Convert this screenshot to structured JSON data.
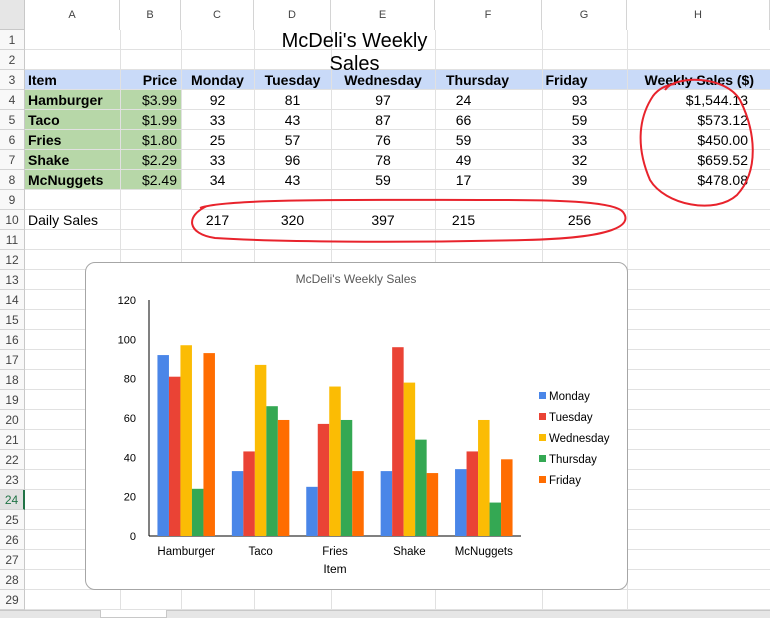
{
  "columns": [
    "A",
    "B",
    "C",
    "D",
    "E",
    "F",
    "G",
    "H"
  ],
  "rows": [
    "1",
    "2",
    "3",
    "4",
    "5",
    "6",
    "7",
    "8",
    "9",
    "10",
    "11",
    "12",
    "13",
    "14",
    "15",
    "16",
    "17",
    "18",
    "19",
    "20",
    "21",
    "22",
    "23",
    "24",
    "25",
    "26",
    "27",
    "28",
    "29"
  ],
  "selected_row": "24",
  "sheet_title": "McDeli's Weekly Sales",
  "headers": [
    "Item",
    "Price",
    "Monday",
    "Tuesday",
    "Wednesday",
    "Thursday",
    "Friday",
    "Weekly Sales ($)"
  ],
  "items": [
    {
      "name": "Hamburger",
      "price": "$3.99",
      "days": [
        "92",
        "81",
        "97",
        "24",
        "93"
      ],
      "weekly": "$1,544.13"
    },
    {
      "name": "Taco",
      "price": "$1.99",
      "days": [
        "33",
        "43",
        "87",
        "66",
        "59"
      ],
      "weekly": "$573.12"
    },
    {
      "name": "Fries",
      "price": "$1.80",
      "days": [
        "25",
        "57",
        "76",
        "59",
        "33"
      ],
      "weekly": "$450.00"
    },
    {
      "name": "Shake",
      "price": "$2.29",
      "days": [
        "33",
        "96",
        "78",
        "49",
        "32"
      ],
      "weekly": "$659.52"
    },
    {
      "name": "McNuggets",
      "price": "$2.49",
      "days": [
        "34",
        "43",
        "59",
        "17",
        "39"
      ],
      "weekly": "$478.08"
    }
  ],
  "daily_sales": {
    "label": "Daily Sales",
    "values": [
      "217",
      "320",
      "397",
      "215",
      "256"
    ]
  },
  "colors": {
    "header_band": "#c9daf8",
    "item_fill": "#b7d7a8",
    "annotation": "#e8232c"
  },
  "chart_data": {
    "type": "bar",
    "title": "McDeli's Weekly Sales",
    "xlabel": "Item",
    "ylabel": "",
    "categories": [
      "Hamburger",
      "Taco",
      "Fries",
      "Shake",
      "McNuggets"
    ],
    "ylim": [
      0,
      120
    ],
    "yticks": [
      "0",
      "20",
      "40",
      "60",
      "80",
      "100",
      "120"
    ],
    "legend_position": "right",
    "series": [
      {
        "name": "Monday",
        "color": "#4a86e8",
        "values": [
          92,
          33,
          25,
          33,
          34
        ]
      },
      {
        "name": "Tuesday",
        "color": "#ea4335",
        "values": [
          81,
          43,
          57,
          96,
          43
        ]
      },
      {
        "name": "Wednesday",
        "color": "#fbbc04",
        "values": [
          97,
          87,
          76,
          78,
          59
        ]
      },
      {
        "name": "Thursday",
        "color": "#34a853",
        "values": [
          24,
          66,
          59,
          49,
          17
        ]
      },
      {
        "name": "Friday",
        "color": "#ff6d01",
        "values": [
          93,
          59,
          33,
          32,
          39
        ]
      }
    ]
  }
}
